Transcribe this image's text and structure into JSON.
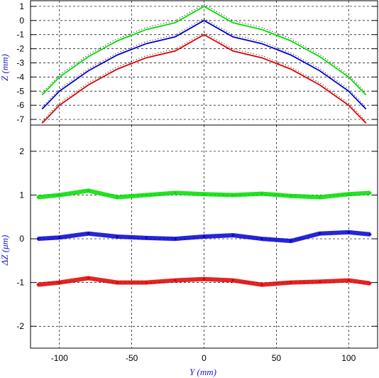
{
  "chart_data": [
    {
      "type": "line",
      "ylabel": "Z (mm)",
      "xlim": [
        -120,
        120
      ],
      "ylim": [
        -7.4,
        1.4
      ],
      "grid": true,
      "yticks": [
        1,
        0,
        -1,
        -2,
        -3,
        -4,
        -5,
        -6,
        -7
      ],
      "series": [
        {
          "color": "#00dd00",
          "x": [
            -112,
            -100,
            -80,
            -60,
            -40,
            -20,
            0,
            20,
            40,
            60,
            80,
            100,
            112
          ],
          "y": [
            -5.27,
            -4.0,
            -2.56,
            -1.44,
            -0.64,
            -0.16,
            1.0,
            -0.16,
            -0.64,
            -1.44,
            -2.56,
            -4.0,
            -5.27
          ]
        },
        {
          "color": "#0000cc",
          "x": [
            -112,
            -100,
            -80,
            -60,
            -40,
            -20,
            0,
            20,
            40,
            60,
            80,
            100,
            112
          ],
          "y": [
            -6.27,
            -5.0,
            -3.56,
            -2.44,
            -1.64,
            -1.16,
            0.0,
            -1.16,
            -1.64,
            -2.44,
            -3.56,
            -5.0,
            -6.27
          ]
        },
        {
          "color": "#dd0000",
          "x": [
            -112,
            -100,
            -80,
            -60,
            -40,
            -20,
            0,
            20,
            40,
            60,
            80,
            100,
            112
          ],
          "y": [
            -7.27,
            -6.0,
            -4.56,
            -3.44,
            -2.64,
            -2.16,
            -1.0,
            -2.16,
            -2.64,
            -3.44,
            -4.56,
            -6.0,
            -7.27
          ]
        }
      ]
    },
    {
      "type": "scatter",
      "xlabel": "Y (mm)",
      "ylabel": "ΔZ (μm)",
      "xlim": [
        -120,
        120
      ],
      "ylim": [
        -2.5,
        2.6
      ],
      "grid": true,
      "xticks": [
        -100,
        -50,
        0,
        50,
        100
      ],
      "yticks": [
        2,
        1,
        0,
        -1,
        -2
      ],
      "series": [
        {
          "color": "#00dd00",
          "x": [
            -115,
            -100,
            -80,
            -60,
            -40,
            -20,
            0,
            20,
            40,
            60,
            80,
            100,
            115
          ],
          "y": [
            0.95,
            1.0,
            1.1,
            0.95,
            1.0,
            1.05,
            1.02,
            1.0,
            1.03,
            0.98,
            0.95,
            1.02,
            1.05
          ]
        },
        {
          "color": "#0000cc",
          "x": [
            -115,
            -100,
            -80,
            -60,
            -40,
            -20,
            0,
            20,
            40,
            60,
            80,
            100,
            115
          ],
          "y": [
            0.0,
            0.03,
            0.12,
            0.05,
            0.02,
            0.0,
            0.05,
            0.08,
            0.0,
            -0.05,
            0.12,
            0.15,
            0.1
          ]
        },
        {
          "color": "#dd0000",
          "x": [
            -115,
            -100,
            -80,
            -60,
            -40,
            -20,
            0,
            20,
            40,
            60,
            80,
            100,
            115
          ],
          "y": [
            -1.05,
            -1.0,
            -0.9,
            -1.0,
            -1.0,
            -0.95,
            -0.92,
            -0.95,
            -1.05,
            -1.0,
            -0.98,
            -0.95,
            -1.02
          ]
        }
      ]
    }
  ]
}
